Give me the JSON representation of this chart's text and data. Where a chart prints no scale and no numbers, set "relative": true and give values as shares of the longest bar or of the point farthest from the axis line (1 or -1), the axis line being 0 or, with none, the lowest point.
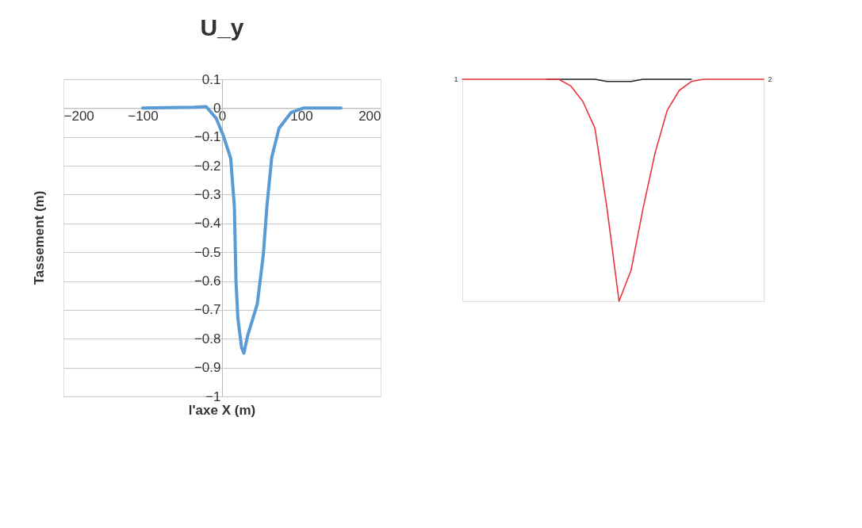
{
  "chart_data": [
    {
      "type": "line",
      "title": "U_y",
      "xlabel": "l'axe X (m)",
      "ylabel": "Tassement (m)",
      "x": [
        -100,
        -35,
        -20,
        -7.5,
        1.7,
        10.9,
        15.5,
        17.6,
        20,
        24.6,
        27.6,
        32.2,
        44.4,
        52,
        56.6,
        62.7,
        71.9,
        87.2,
        102.5,
        150
      ],
      "series": [
        {
          "color": "#5b9bd5",
          "values": [
            0,
            0.003,
            0.005,
            -0.035,
            -0.096,
            -0.174,
            -0.34,
            -0.6,
            -0.73,
            -0.83,
            -0.85,
            -0.79,
            -0.68,
            -0.51,
            -0.34,
            -0.17,
            -0.07,
            -0.015,
            0,
            0
          ]
        }
      ],
      "xlim": [
        -200,
        200
      ],
      "xticks": [
        -200,
        -100,
        0,
        100,
        200
      ],
      "ylim": [
        -1,
        0.1
      ],
      "yticks": [
        0.1,
        0,
        -0.1,
        -0.2,
        -0.3,
        -0.4,
        -0.5,
        -0.6,
        -0.7,
        -0.8,
        -0.9,
        -1
      ],
      "grid": "y",
      "marker": "none",
      "line_style": "solid"
    },
    {
      "type": "line",
      "relative": true,
      "annotations": [
        "1",
        "2"
      ],
      "categories": [
        null,
        null,
        null,
        null,
        null,
        null,
        null,
        null,
        null,
        null,
        null,
        null,
        null,
        null,
        null,
        null,
        null,
        null,
        null,
        null,
        null,
        null,
        null,
        null,
        null,
        null
      ],
      "series": [
        {
          "color": "#222222",
          "values": [
            null,
            null,
            null,
            null,
            null,
            null,
            null,
            0,
            0,
            0,
            0,
            0,
            -0.01,
            -0.01,
            -0.01,
            0,
            0,
            0,
            0,
            0,
            null,
            null,
            null,
            null,
            null,
            null
          ]
        },
        {
          "color": "#e8343a",
          "values": [
            0,
            0,
            0,
            0,
            0,
            0,
            0,
            0,
            0,
            -0.03,
            -0.1,
            -0.22,
            -0.58,
            -1,
            -0.86,
            -0.58,
            -0.33,
            -0.14,
            -0.05,
            -0.01,
            0,
            0,
            0,
            0,
            0,
            0
          ]
        }
      ],
      "grid": false,
      "marker": "none",
      "line_style": "solid"
    }
  ]
}
